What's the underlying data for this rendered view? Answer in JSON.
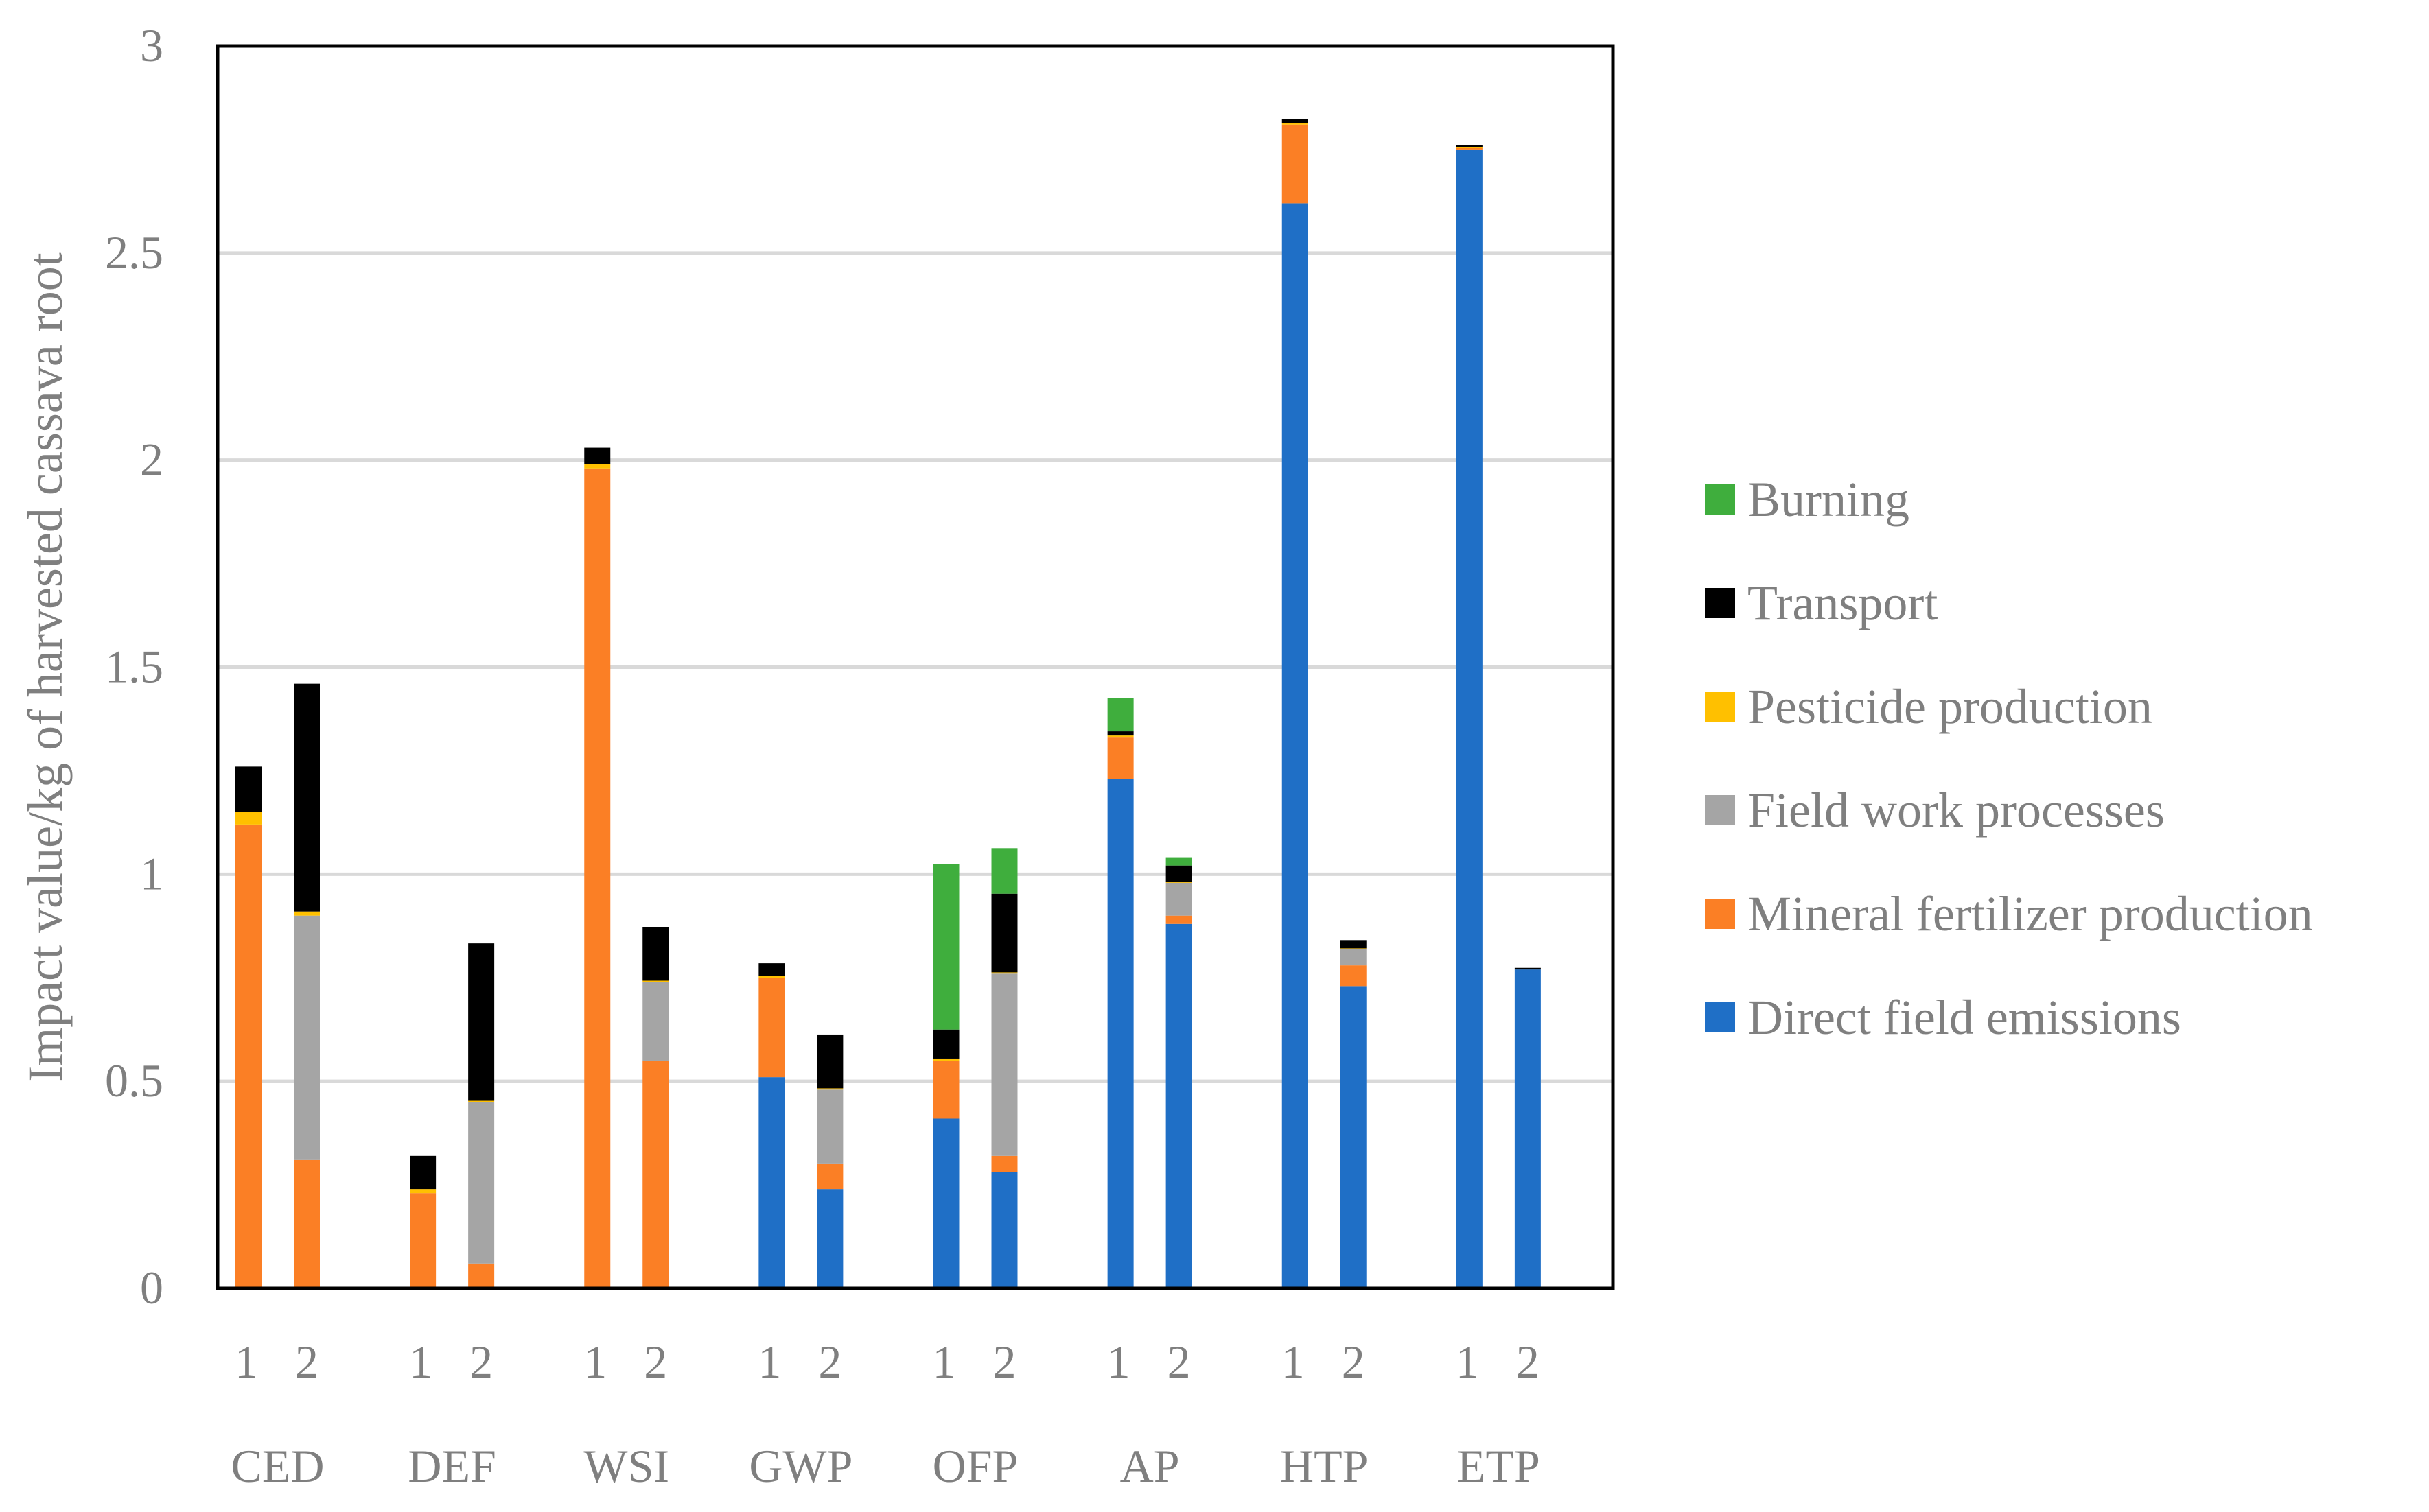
{
  "chart_data": {
    "type": "bar",
    "stacked": true,
    "title": "",
    "xlabel": "",
    "ylabel": "Impact value/kg of harvested cassava root",
    "ylim": [
      0,
      3
    ],
    "yticks": [
      "0",
      "0.5",
      "1",
      "1.5",
      "2",
      "2.5",
      "3"
    ],
    "grid": true,
    "legend_position": "right",
    "groups": [
      "CED",
      "DEF",
      "WSI",
      "GWP",
      "OFP",
      "AP",
      "HTP",
      "ETP"
    ],
    "sub_labels": [
      "1",
      "2"
    ],
    "categories": [
      "CED 1",
      "CED 2",
      "DEF 1",
      "DEF 2",
      "WSI 1",
      "WSI 2",
      "GWP 1",
      "GWP 2",
      "OFP 1",
      "OFP 2",
      "AP 1",
      "AP 2",
      "HTP 1",
      "HTP 2",
      "ETP 1",
      "ETP 2"
    ],
    "series": [
      {
        "name": "Direct field emissions",
        "color": "#1f6fc6",
        "values": [
          0,
          0,
          0,
          0,
          0,
          0,
          0.51,
          0.24,
          0.41,
          0.28,
          1.23,
          0.88,
          2.62,
          0.73,
          2.75,
          0.77
        ]
      },
      {
        "name": "Mineral fertilizer production",
        "color": "#fb7f25",
        "values": [
          1.12,
          0.31,
          0.23,
          0.06,
          1.98,
          0.55,
          0.24,
          0.06,
          0.14,
          0.04,
          0.1,
          0.02,
          0.19,
          0.05,
          0.004,
          0
        ]
      },
      {
        "name": "Field work processes",
        "color": "#a5a5a5",
        "values": [
          0,
          0.59,
          0,
          0.39,
          0,
          0.19,
          0,
          0.18,
          0,
          0.44,
          0,
          0.08,
          0,
          0.04,
          0,
          0
        ]
      },
      {
        "name": "Pesticide production",
        "color": "#ffc000",
        "values": [
          0.03,
          0.01,
          0.01,
          0.003,
          0.01,
          0.003,
          0.005,
          0.003,
          0.005,
          0.003,
          0.005,
          0.001,
          0.003,
          0.001,
          0.001,
          0
        ]
      },
      {
        "name": "Transport",
        "color": "#000000",
        "values": [
          0.11,
          0.55,
          0.08,
          0.38,
          0.04,
          0.13,
          0.03,
          0.13,
          0.07,
          0.19,
          0.01,
          0.04,
          0.01,
          0.02,
          0.005,
          0.004
        ]
      },
      {
        "name": "Burning",
        "color": "#3fae3d",
        "values": [
          0,
          0,
          0,
          0,
          0,
          0,
          0,
          0,
          0.4,
          0.11,
          0.08,
          0.02,
          0,
          0,
          0,
          0
        ]
      }
    ]
  }
}
